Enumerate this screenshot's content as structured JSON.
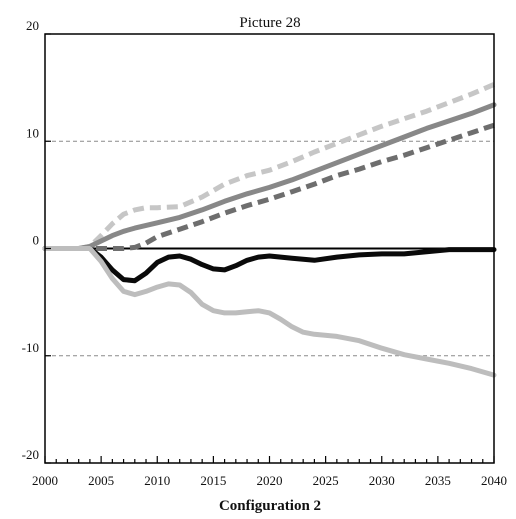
{
  "chart_data": {
    "type": "line",
    "title": "Picture 28",
    "xlabel": "Configuration 2",
    "ylabel": "",
    "xlim": [
      2000,
      2040
    ],
    "ylim": [
      -20,
      20
    ],
    "x_ticks": [
      2000,
      2005,
      2010,
      2015,
      2020,
      2025,
      2030,
      2035,
      2040
    ],
    "y_ticks": [
      -20,
      -10,
      0,
      10,
      20
    ],
    "grid": "dashed horizontal at -10 and 10",
    "zero_line": true,
    "legend": "none",
    "series": [
      {
        "color": "#c6c6c6",
        "style": "dashed",
        "x": [
          2000,
          2003,
          2004,
          2005,
          2006,
          2007,
          2008,
          2009,
          2010,
          2012,
          2014,
          2016,
          2018,
          2020,
          2022,
          2024,
          2026,
          2028,
          2030,
          2032,
          2034,
          2036,
          2038,
          2040
        ],
        "y": [
          0,
          0,
          0.2,
          1.2,
          2.3,
          3.2,
          3.6,
          3.8,
          3.8,
          3.9,
          4.8,
          6.0,
          6.8,
          7.3,
          8.1,
          9.0,
          9.8,
          10.6,
          11.4,
          12.1,
          12.8,
          13.6,
          14.4,
          15.3
        ]
      },
      {
        "color": "#888888",
        "style": "solid",
        "x": [
          2000,
          2003,
          2004,
          2005,
          2006,
          2007,
          2008,
          2010,
          2012,
          2014,
          2016,
          2018,
          2020,
          2022,
          2024,
          2026,
          2028,
          2030,
          2032,
          2034,
          2036,
          2038,
          2040
        ],
        "y": [
          0,
          0,
          0.2,
          0.7,
          1.2,
          1.6,
          1.9,
          2.4,
          2.9,
          3.6,
          4.4,
          5.1,
          5.7,
          6.4,
          7.2,
          8.0,
          8.8,
          9.6,
          10.4,
          11.2,
          11.9,
          12.6,
          13.4
        ]
      },
      {
        "color": "#6e6e6e",
        "style": "dashed",
        "x": [
          2000,
          2004,
          2006,
          2007,
          2008,
          2009,
          2010,
          2012,
          2014,
          2016,
          2018,
          2020,
          2022,
          2024,
          2026,
          2028,
          2030,
          2032,
          2034,
          2036,
          2038,
          2040
        ],
        "y": [
          0,
          0,
          0,
          0,
          0.1,
          0.5,
          1.1,
          1.8,
          2.5,
          3.3,
          4.0,
          4.6,
          5.3,
          6.0,
          6.8,
          7.4,
          8.1,
          8.7,
          9.4,
          10.1,
          10.8,
          11.5
        ]
      },
      {
        "color": "#0a0a0a",
        "style": "solid",
        "x": [
          2000,
          2003,
          2004,
          2005,
          2006,
          2007,
          2008,
          2009,
          2010,
          2011,
          2012,
          2013,
          2014,
          2015,
          2016,
          2017,
          2018,
          2019,
          2020,
          2022,
          2024,
          2026,
          2028,
          2030,
          2032,
          2034,
          2036,
          2038,
          2040
        ],
        "y": [
          0,
          0,
          0,
          -0.8,
          -2.0,
          -2.9,
          -3.0,
          -2.3,
          -1.3,
          -0.8,
          -0.7,
          -1.0,
          -1.5,
          -1.9,
          -2.0,
          -1.6,
          -1.1,
          -0.8,
          -0.7,
          -0.9,
          -1.1,
          -0.8,
          -0.6,
          -0.5,
          -0.5,
          -0.3,
          -0.1,
          -0.1,
          -0.1
        ]
      },
      {
        "color": "#bdbdbd",
        "style": "solid",
        "x": [
          2000,
          2003,
          2004,
          2005,
          2006,
          2007,
          2008,
          2009,
          2010,
          2011,
          2012,
          2013,
          2014,
          2015,
          2016,
          2017,
          2018,
          2019,
          2020,
          2021,
          2022,
          2023,
          2024,
          2026,
          2028,
          2030,
          2032,
          2034,
          2036,
          2038,
          2040
        ],
        "y": [
          0,
          0,
          0,
          -1.2,
          -2.8,
          -4.0,
          -4.3,
          -4.0,
          -3.6,
          -3.3,
          -3.4,
          -4.1,
          -5.2,
          -5.8,
          -6.0,
          -6.0,
          -5.9,
          -5.8,
          -6.0,
          -6.6,
          -7.3,
          -7.8,
          -8.0,
          -8.2,
          -8.6,
          -9.3,
          -9.9,
          -10.3,
          -10.7,
          -11.2,
          -11.8
        ]
      }
    ]
  }
}
